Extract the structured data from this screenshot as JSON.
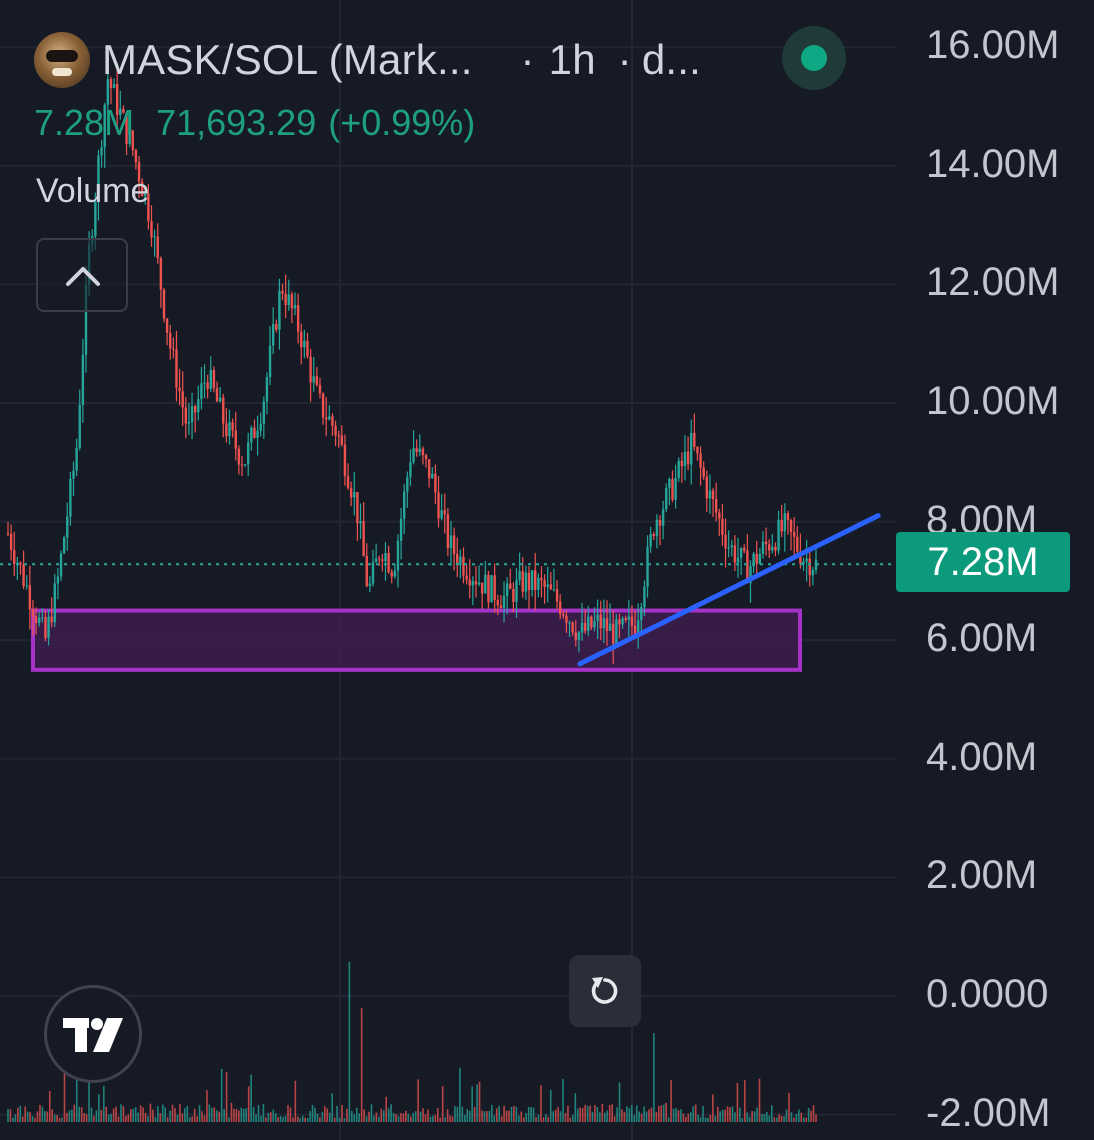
{
  "header": {
    "pair": "MASK/SOL (Mark...",
    "interval": "1h",
    "source": "d...",
    "last_value": "7.28M",
    "price": "71,693.29",
    "change": "(+0.99%)",
    "indicator_label": "Volume"
  },
  "colors": {
    "background": "#161a25",
    "up": "#26a69a",
    "down": "#ef5350",
    "zone_border": "#a533c8",
    "zone_fill": "#3d1d4f",
    "trendline": "#2962ff",
    "price_tag": "#0c9a7c"
  },
  "icons": [
    "avatar-icon",
    "status-dot-icon",
    "chevron-up-icon",
    "reset-icon",
    "tradingview-logo-icon"
  ],
  "chart_data": {
    "type": "candlestick",
    "title": "MASK/SOL (Mark... · 1h · d...",
    "y_axis_ticks": [
      "16.00M",
      "14.00M",
      "12.00M",
      "10.00M",
      "8.00M",
      "6.00M",
      "4.00M",
      "2.00M",
      "0.0000",
      "-2.00M"
    ],
    "y_axis_values": [
      16,
      14,
      12,
      10,
      8,
      6,
      4,
      2,
      0,
      -2
    ],
    "ylim": [
      -2,
      16.8
    ],
    "unit": "M",
    "last_price": 7.28,
    "last_price_label": "7.28M",
    "approx_close_path": [
      [
        0,
        7.8
      ],
      [
        4,
        6.6
      ],
      [
        6,
        6.0
      ],
      [
        8,
        7.0
      ],
      [
        11,
        9.2
      ],
      [
        13,
        12.5
      ],
      [
        16,
        15.5
      ],
      [
        20,
        14.3
      ],
      [
        23,
        13.1
      ],
      [
        26,
        11.0
      ],
      [
        29,
        9.5
      ],
      [
        32,
        10.5
      ],
      [
        35,
        9.6
      ],
      [
        38,
        9.0
      ],
      [
        41,
        10.0
      ],
      [
        44,
        12.0
      ],
      [
        47,
        11.2
      ],
      [
        50,
        10.0
      ],
      [
        53,
        9.5
      ],
      [
        56,
        8.3
      ],
      [
        58,
        6.8
      ],
      [
        60,
        7.6
      ],
      [
        62,
        7.2
      ],
      [
        65,
        9.3
      ],
      [
        68,
        8.8
      ],
      [
        71,
        7.6
      ],
      [
        74,
        7.2
      ],
      [
        77,
        6.9
      ],
      [
        80,
        6.7
      ],
      [
        83,
        7.0
      ],
      [
        86,
        6.9
      ],
      [
        89,
        6.6
      ],
      [
        92,
        6.1
      ],
      [
        95,
        6.3
      ],
      [
        98,
        6.1
      ],
      [
        101,
        6.3
      ],
      [
        104,
        8.0
      ],
      [
        107,
        8.6
      ],
      [
        110,
        9.3
      ],
      [
        113,
        8.4
      ],
      [
        116,
        7.6
      ],
      [
        119,
        7.2
      ],
      [
        122,
        7.6
      ],
      [
        125,
        7.9
      ],
      [
        128,
        7.4
      ],
      [
        130,
        7.28
      ]
    ],
    "support_zone": {
      "low": 5.5,
      "high": 6.5
    },
    "trendline": {
      "from": {
        "x": 92,
        "y": 5.6
      },
      "to": {
        "x": 140,
        "y": 8.1
      }
    },
    "volume_spikes": [
      [
        9,
        1.3
      ],
      [
        13,
        0.8
      ],
      [
        55,
        2.5
      ],
      [
        57,
        1.2
      ],
      [
        104,
        0.5
      ]
    ],
    "grid": true
  }
}
